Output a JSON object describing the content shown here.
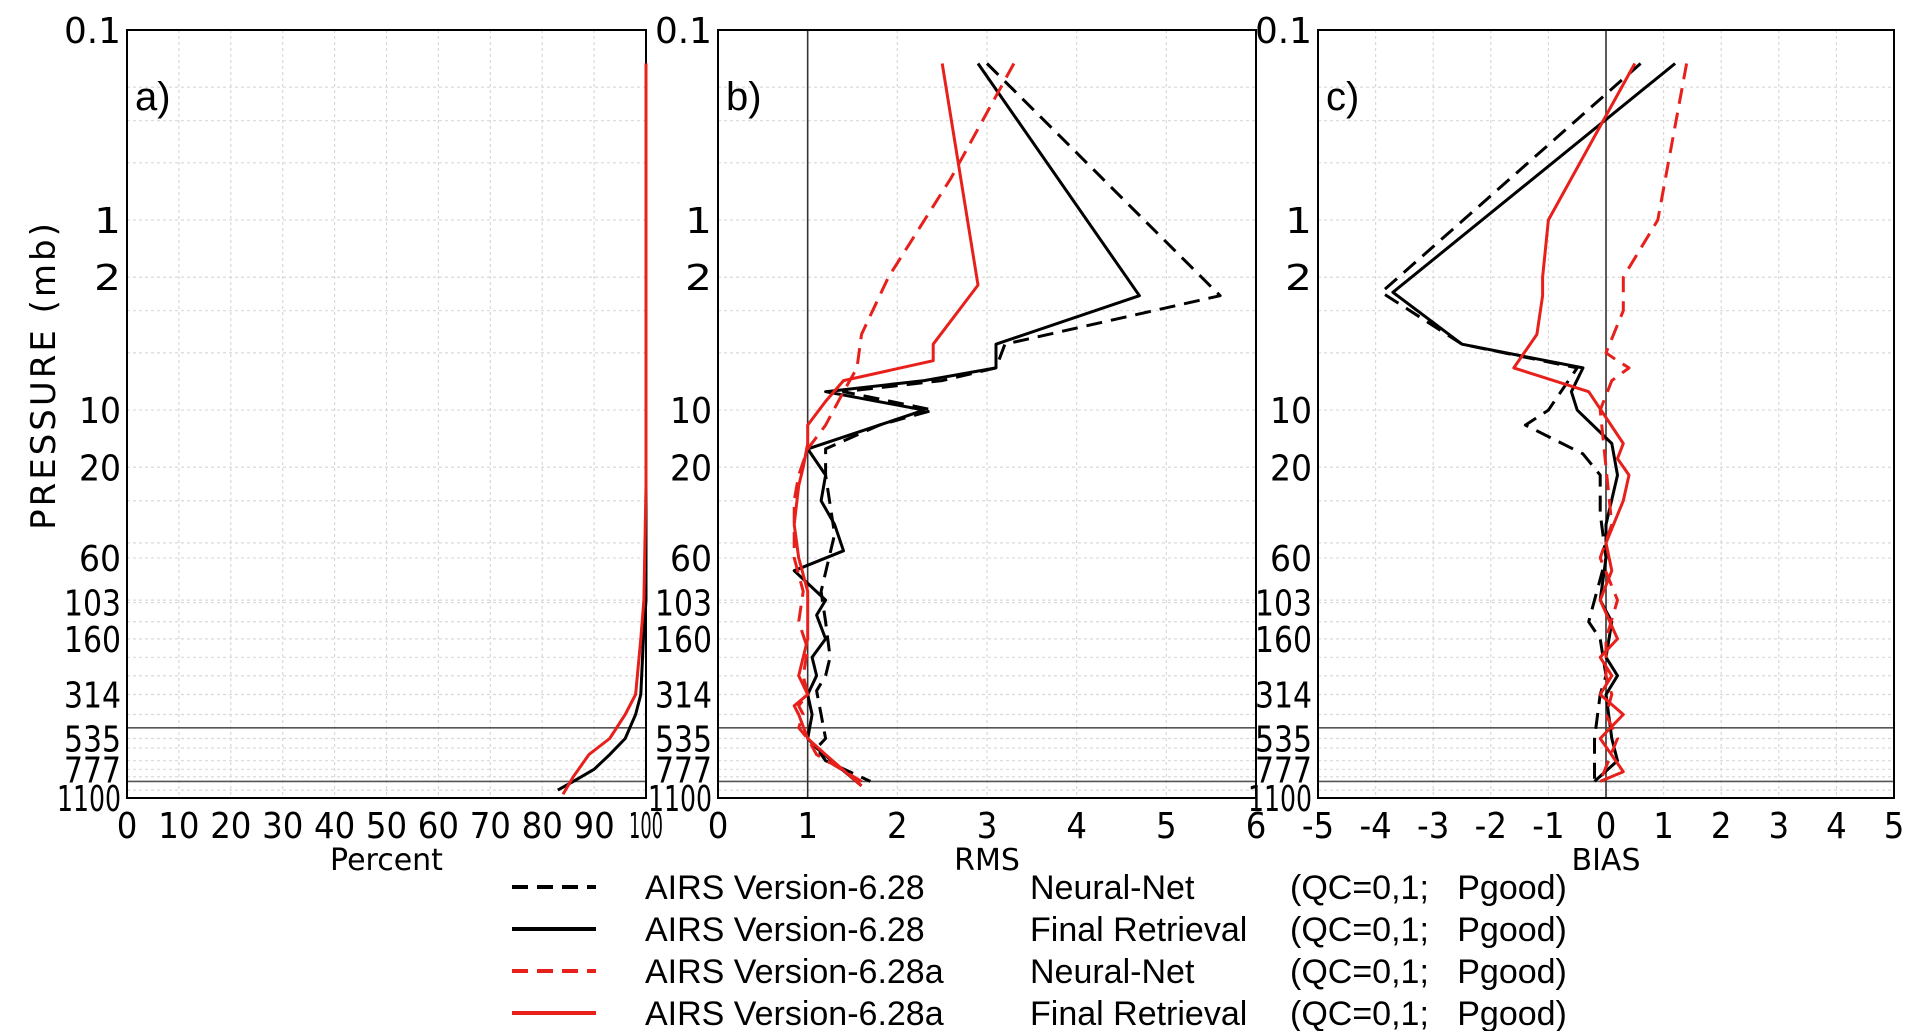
{
  "y_axis_label": "PRESSURE (mb)",
  "y_ticks": [
    "0.1",
    "1",
    "2",
    "10",
    "20",
    "60",
    "103",
    "160",
    "314",
    "535",
    "777",
    "1100"
  ],
  "legend": [
    {
      "version": "AIRS Version-6.28",
      "method": "Neural-Net",
      "qc": "(QC=0,1;   Pgood)",
      "color": "#000000",
      "style": "dashed"
    },
    {
      "version": "AIRS Version-6.28",
      "method": "Final Retrieval",
      "qc": "(QC=0,1;   Pgood)",
      "color": "#000000",
      "style": "solid"
    },
    {
      "version": "AIRS Version-6.28a",
      "method": "Neural-Net",
      "qc": "(QC=0,1;   Pgood)",
      "color": "#e8201b",
      "style": "dashed"
    },
    {
      "version": "AIRS Version-6.28a",
      "method": "Final Retrieval",
      "qc": "(QC=0,1;   Pgood)",
      "color": "#e8201b",
      "style": "solid"
    }
  ],
  "chart_data": [
    {
      "type": "line",
      "panel_label": "a)",
      "xlabel": "Percent",
      "ylabel": "PRESSURE (mb)",
      "yscale": "log",
      "yinverted": true,
      "ylim": [
        0.1,
        1100
      ],
      "xlim": [
        0,
        100
      ],
      "xticks": [
        "0",
        "10",
        "20",
        "30",
        "40",
        "50",
        "60",
        "70",
        "80",
        "90",
        "100"
      ],
      "grid": true,
      "ref_lines_y": [
        470,
        900
      ],
      "series": [
        {
          "name": "AIRS Version-6.28",
          "color": "#000000",
          "style": "solid",
          "x": [
            100,
            100,
            100,
            99.5,
            99,
            98,
            96,
            93,
            90,
            86,
            83
          ],
          "y": [
            25,
            40,
            100,
            160,
            314,
            400,
            535,
            650,
            777,
            900,
            1000
          ]
        },
        {
          "name": "AIRS Version-6.28a",
          "color": "#e8201b",
          "style": "solid",
          "x": [
            100,
            100,
            100,
            100,
            99.6,
            99,
            98,
            96,
            93,
            89,
            86,
            84
          ],
          "y": [
            0.15,
            1,
            10,
            25,
            100,
            160,
            314,
            400,
            535,
            650,
            850,
            1050
          ]
        }
      ]
    },
    {
      "type": "line",
      "panel_label": "b)",
      "xlabel": "RMS",
      "ylabel": "",
      "yscale": "log",
      "yinverted": true,
      "ylim": [
        0.1,
        1100
      ],
      "xlim": [
        0,
        6
      ],
      "xticks": [
        "0",
        "1",
        "2",
        "3",
        "4",
        "5",
        "6"
      ],
      "grid": true,
      "ref_lines_x": [
        1
      ],
      "ref_lines_y": [
        470,
        900
      ],
      "series": [
        {
          "name": "AIRS Version-6.28 Neural-Net",
          "color": "#000000",
          "style": "dashed",
          "x": [
            3.0,
            5.6,
            3.2,
            3.1,
            2.5,
            1.4,
            2.4,
            1.8,
            1.2,
            1.2,
            1.3,
            1.15,
            1.2,
            1.25,
            1.2,
            1.1,
            1.15,
            1.2,
            1.1,
            1.2,
            1.7
          ],
          "y": [
            0.15,
            2.5,
            4.5,
            6,
            7,
            8,
            10,
            12,
            16,
            22,
            45,
            90,
            130,
            200,
            250,
            300,
            400,
            535,
            600,
            700,
            900
          ]
        },
        {
          "name": "AIRS Version-6.28 Final Retrieval",
          "color": "#000000",
          "style": "solid",
          "x": [
            2.9,
            4.7,
            3.1,
            3.1,
            2.3,
            1.2,
            2.3,
            1.8,
            1.0,
            1.2,
            1.15,
            1.3,
            1.4,
            0.85,
            1.2,
            1.1,
            1.2,
            1.05,
            1.1,
            1.0,
            1.05,
            1.0,
            1.1,
            1.6
          ],
          "y": [
            0.15,
            2.5,
            4.5,
            6,
            7,
            8,
            10,
            12,
            16,
            22,
            30,
            40,
            55,
            70,
            100,
            120,
            160,
            200,
            250,
            314,
            400,
            535,
            600,
            950
          ]
        },
        {
          "name": "AIRS Version-6.28a Neural-Net",
          "color": "#e8201b",
          "style": "dashed",
          "x": [
            3.3,
            2.6,
            1.9,
            1.6,
            1.55,
            1.4,
            1.2,
            1.0,
            0.9,
            0.85,
            0.85,
            0.95,
            0.9,
            1.0,
            0.95,
            1.0,
            0.9,
            0.95,
            0.9,
            1.0,
            1.1,
            1.6
          ],
          "y": [
            0.15,
            0.6,
            2,
            4,
            6,
            8,
            12,
            16,
            22,
            30,
            60,
            90,
            130,
            180,
            250,
            314,
            360,
            400,
            470,
            535,
            650,
            900
          ]
        },
        {
          "name": "AIRS Version-6.28a Final Retrieval",
          "color": "#e8201b",
          "style": "solid",
          "x": [
            2.5,
            2.9,
            2.4,
            2.4,
            1.4,
            1.2,
            1.0,
            1.0,
            0.95,
            0.9,
            0.85,
            0.9,
            1.0,
            1.0,
            1.0,
            0.95,
            0.9,
            1.0,
            0.85,
            0.9,
            1.0,
            1.2,
            1.6
          ],
          "y": [
            0.15,
            2.2,
            4.5,
            5.5,
            7,
            9,
            12,
            15,
            20,
            25,
            40,
            60,
            90,
            130,
            160,
            200,
            250,
            314,
            360,
            400,
            535,
            650,
            950
          ]
        }
      ]
    },
    {
      "type": "line",
      "panel_label": "c)",
      "xlabel": "BIAS",
      "ylabel": "",
      "yscale": "log",
      "yinverted": true,
      "ylim": [
        0.1,
        1100
      ],
      "xlim": [
        -5,
        5
      ],
      "xticks": [
        "-5",
        "-4",
        "-3",
        "-2",
        "-1",
        "0",
        "1",
        "2",
        "3",
        "4",
        "5"
      ],
      "grid": true,
      "ref_lines_x": [
        0
      ],
      "ref_lines_y": [
        470,
        900
      ],
      "series": [
        {
          "name": "AIRS Version-6.28 Neural-Net",
          "color": "#000000",
          "style": "dashed",
          "x": [
            0.6,
            -3.9,
            -2.5,
            -0.5,
            -1.0,
            -1.4,
            -0.4,
            -0.1,
            -0.1,
            0.0,
            -0.2,
            -0.3,
            -0.1,
            0.0,
            -0.1,
            -0.2,
            -0.2
          ],
          "y": [
            0.15,
            2.4,
            4.5,
            6,
            10,
            12,
            17,
            22,
            35,
            60,
            100,
            130,
            160,
            250,
            314,
            535,
            900
          ]
        },
        {
          "name": "AIRS Version-6.28 Final Retrieval",
          "color": "#000000",
          "style": "solid",
          "x": [
            1.2,
            -3.7,
            -2.5,
            -0.4,
            -0.6,
            -0.5,
            0.1,
            0.2,
            0.0,
            0.0,
            -0.1,
            0.1,
            0.0,
            0.2,
            0.0,
            0.1,
            0.2,
            -0.2
          ],
          "y": [
            0.15,
            2.4,
            4.5,
            6,
            8,
            10,
            15,
            22,
            40,
            60,
            100,
            130,
            200,
            250,
            314,
            535,
            700,
            900
          ]
        },
        {
          "name": "AIRS Version-6.28a Neural-Net",
          "color": "#e8201b",
          "style": "dashed",
          "x": [
            1.4,
            0.9,
            0.3,
            0.3,
            0.0,
            0.2,
            0.4,
            0.1,
            -0.1,
            0.0,
            0.1,
            -0.1,
            0.2,
            0.0,
            0.0,
            0.1,
            0.0,
            0.2,
            -0.1
          ],
          "y": [
            0.15,
            1,
            2,
            3,
            5,
            5.5,
            6,
            7,
            10,
            20,
            40,
            60,
            100,
            160,
            250,
            314,
            400,
            535,
            900
          ]
        },
        {
          "name": "AIRS Version-6.28a Final Retrieval",
          "color": "#e8201b",
          "style": "solid",
          "x": [
            0.5,
            -1.0,
            -1.1,
            -1.1,
            -1.2,
            -1.6,
            -0.3,
            0.3,
            0.2,
            0.4,
            0.3,
            0.0,
            0.1,
            -0.1,
            0.2,
            -0.1,
            0.1,
            -0.1,
            0.3,
            -0.1,
            0.3,
            -0.1
          ],
          "y": [
            0.15,
            1,
            2,
            2.5,
            4,
            6,
            8,
            15,
            18,
            22,
            30,
            50,
            70,
            100,
            160,
            200,
            250,
            314,
            400,
            535,
            800,
            900
          ]
        }
      ]
    }
  ]
}
